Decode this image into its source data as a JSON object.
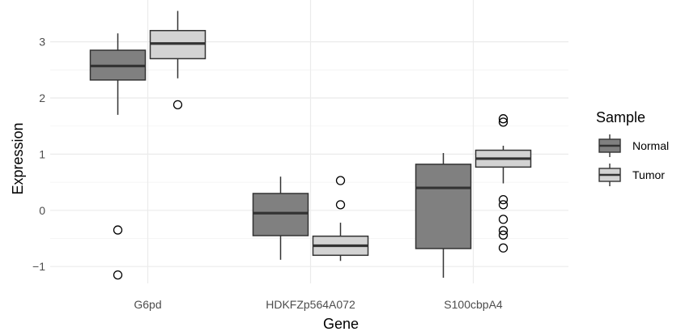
{
  "chart_data": {
    "type": "boxplot",
    "xlabel": "Gene",
    "ylabel": "Expression",
    "categories": [
      "G6pd",
      "HDKFZp564A072",
      "S100cbpA4"
    ],
    "ylim": [
      -1.3,
      3.6
    ],
    "yticks": [
      -1,
      0,
      1,
      2,
      3
    ],
    "ytick_labels": [
      "−1",
      "0",
      "1",
      "2",
      "3"
    ],
    "grid": true,
    "legend": {
      "title": "Sample",
      "position": "right",
      "entries": [
        {
          "name": "Normal",
          "color": "#808080"
        },
        {
          "name": "Tumor",
          "color": "#d3d3d3"
        }
      ]
    },
    "series": [
      {
        "name": "Normal",
        "color": "#808080",
        "boxes": [
          {
            "category": "G6pd",
            "whisker_low": 1.7,
            "q1": 2.32,
            "median": 2.57,
            "q3": 2.85,
            "whisker_high": 3.15,
            "outliers": [
              -0.35,
              -1.15
            ]
          },
          {
            "category": "HDKFZp564A072",
            "whisker_low": -0.88,
            "q1": -0.45,
            "median": -0.05,
            "q3": 0.3,
            "whisker_high": 0.6,
            "outliers": []
          },
          {
            "category": "S100cbpA4",
            "whisker_low": -1.2,
            "q1": -0.68,
            "median": 0.4,
            "q3": 0.82,
            "whisker_high": 1.02,
            "outliers": []
          }
        ]
      },
      {
        "name": "Tumor",
        "color": "#d3d3d3",
        "boxes": [
          {
            "category": "G6pd",
            "whisker_low": 2.35,
            "q1": 2.7,
            "median": 2.97,
            "q3": 3.2,
            "whisker_high": 3.55,
            "outliers": [
              1.88
            ]
          },
          {
            "category": "HDKFZp564A072",
            "whisker_low": -0.9,
            "q1": -0.8,
            "median": -0.63,
            "q3": -0.46,
            "whisker_high": -0.22,
            "outliers": [
              0.53,
              0.1
            ]
          },
          {
            "category": "S100cbpA4",
            "whisker_low": 0.48,
            "q1": 0.77,
            "median": 0.92,
            "q3": 1.07,
            "whisker_high": 1.15,
            "outliers": [
              1.63,
              1.57,
              0.19,
              0.1,
              -0.16,
              -0.36,
              -0.44,
              -0.67
            ]
          }
        ]
      }
    ]
  }
}
